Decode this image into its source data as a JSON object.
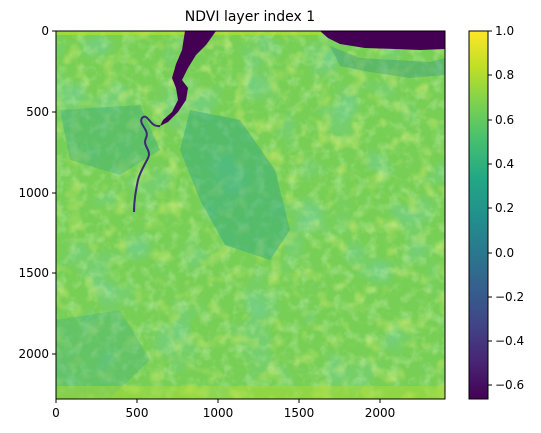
{
  "figure": {
    "title": "NDVI layer index 1",
    "colormap": "viridis",
    "x_ticks": [
      "0",
      "500",
      "1000",
      "1500",
      "2000"
    ],
    "x_tick_values": [
      0,
      500,
      1000,
      1500,
      2000
    ],
    "y_ticks": [
      "0",
      "500",
      "1000",
      "1500",
      "2000"
    ],
    "y_tick_values": [
      0,
      500,
      1000,
      1500,
      2000
    ],
    "x_range": [
      0,
      2400
    ],
    "y_range": [
      0,
      2280
    ],
    "colorbar": {
      "ticks": [
        "1.0",
        "0.8",
        "0.6",
        "0.4",
        "0.2",
        "0.0",
        "−0.2",
        "−0.4",
        "−0.6"
      ],
      "tick_values": [
        1.0,
        0.8,
        0.6,
        0.4,
        0.2,
        0.0,
        -0.2,
        -0.4,
        -0.6
      ],
      "range": [
        -0.66,
        1.0
      ]
    },
    "colors": {
      "water": "#440154",
      "land_low": "#35b779",
      "land_mid": "#6cce59",
      "land_high": "#b5de2b"
    }
  }
}
